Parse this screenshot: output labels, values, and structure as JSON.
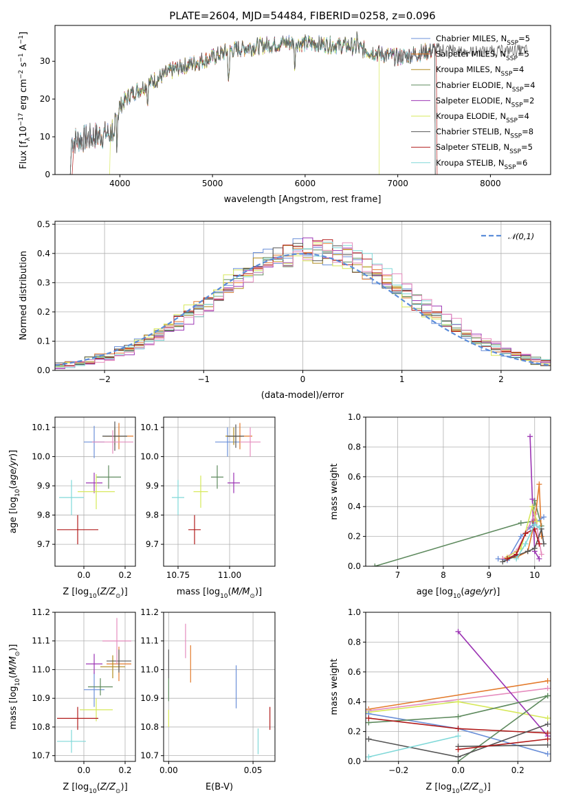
{
  "colors": {
    "Chabrier MILES": "#6a8fd8",
    "Salpeter MILES": "#e37a2b",
    "Kroupa MILES": "#b08a1c",
    "Chabrier ELODIE": "#5e8a5e",
    "Salpeter ELODIE": "#9b33b3",
    "Kroupa ELODIE": "#d6e858",
    "Chabrier STELIB": "#555555",
    "Salpeter STELIB": "#b11a1a",
    "Kroupa STELIB": "#7fd8d8",
    "pink": "#e58bbd",
    "normal": "#5b8dd9"
  },
  "chart_data": [
    {
      "id": "spectrum",
      "type": "line",
      "title": "PLATE=2604, MJD=54484, FIBERID=0258, z=0.096",
      "xlabel": "wavelength [Angstrom, rest frame]",
      "ylabel": "Flux [f",
      "ylabel_parts": [
        "Flux [f",
        "λ",
        "10",
        "−17",
        " erg cm",
        "−2",
        " s",
        "−1",
        " A",
        "−1",
        "]"
      ],
      "xlim": [
        3300,
        8650
      ],
      "ylim": [
        0,
        39.5
      ],
      "xticks": [
        4000,
        5000,
        6000,
        7000,
        8000
      ],
      "yticks": [
        0,
        10,
        20,
        30
      ],
      "grid": false,
      "legend_position": "top-right",
      "series": [
        {
          "name": "Chabrier MILES",
          "nssp": "5"
        },
        {
          "name": "Salpeter MILES",
          "nssp": "5"
        },
        {
          "name": "Kroupa MILES",
          "nssp": "4"
        },
        {
          "name": "Chabrier ELODIE",
          "nssp": "4"
        },
        {
          "name": "Salpeter ELODIE",
          "nssp": "2"
        },
        {
          "name": "Kroupa ELODIE",
          "nssp": "4"
        },
        {
          "name": "Chabrier STELIB",
          "nssp": "8"
        },
        {
          "name": "Salpeter STELIB",
          "nssp": "5"
        },
        {
          "name": "Kroupa STELIB",
          "nssp": "6"
        }
      ],
      "continuum_x": [
        3500,
        3700,
        3900,
        4000,
        4100,
        4300,
        4600,
        5000,
        5200,
        5500,
        5800,
        6200,
        6500,
        6800,
        7000,
        7200,
        7400
      ],
      "continuum_y": [
        9,
        10,
        11,
        18,
        21,
        24,
        28,
        31,
        33,
        34,
        35,
        34.5,
        34,
        32,
        31,
        32,
        33
      ]
    },
    {
      "id": "residuals",
      "type": "bar",
      "xlabel": "(data-model)/error",
      "ylabel": "Normed distribution",
      "xlim": [
        -2.5,
        2.5
      ],
      "ylim": [
        0,
        0.51
      ],
      "xticks": [
        -2,
        -1,
        0,
        1,
        2
      ],
      "yticks": [
        0.0,
        0.1,
        0.2,
        0.3,
        0.4,
        0.5
      ],
      "grid": true,
      "legend": [
        {
          "name": "𝒩(0,1)",
          "style": "dashed"
        }
      ],
      "legend_position": "top-right",
      "bin_width": 0.1,
      "bin_start": -2.5,
      "reference": "normal(0,1)"
    },
    {
      "id": "age_vs_Z",
      "type": "scatter",
      "xlabel": "Z [log",
      "ylabel": "age  [log",
      "xlim": [
        -0.14,
        0.25
      ],
      "ylim": [
        9.625,
        10.135
      ],
      "xticks": [
        0.0,
        0.2
      ],
      "yticks": [
        9.7,
        9.8,
        9.9,
        10.0,
        10.1
      ],
      "grid": true,
      "points": [
        {
          "x": 0.05,
          "y": 10.05,
          "xerr": 0.05,
          "yerr": 0.055,
          "series": "Chabrier MILES"
        },
        {
          "x": 0.17,
          "y": 10.07,
          "xerr": 0.07,
          "yerr": 0.045,
          "series": "Salpeter MILES"
        },
        {
          "x": 0.15,
          "y": 10.07,
          "xerr": 0.06,
          "yerr": 0.03,
          "series": "Kroupa MILES"
        },
        {
          "x": 0.12,
          "y": 9.93,
          "xerr": 0.06,
          "yerr": 0.04,
          "series": "Chabrier ELODIE"
        },
        {
          "x": 0.05,
          "y": 9.91,
          "xerr": 0.04,
          "yerr": 0.035,
          "series": "Salpeter ELODIE"
        },
        {
          "x": 0.06,
          "y": 9.88,
          "xerr": 0.09,
          "yerr": 0.06,
          "series": "Kroupa ELODIE"
        },
        {
          "x": 0.15,
          "y": 10.07,
          "xerr": 0.06,
          "yerr": 0.05,
          "series": "Chabrier STELIB"
        },
        {
          "x": -0.03,
          "y": 9.75,
          "xerr": 0.1,
          "yerr": 0.05,
          "series": "Salpeter STELIB"
        },
        {
          "x": -0.06,
          "y": 9.86,
          "xerr": 0.06,
          "yerr": 0.06,
          "series": "Kroupa STELIB"
        },
        {
          "x": 0.14,
          "y": 10.05,
          "xerr": 0.1,
          "yerr": 0.04,
          "series": "pink"
        }
      ]
    },
    {
      "id": "age_vs_mass",
      "type": "scatter",
      "xlabel": "mass [log",
      "xlim": [
        10.68,
        11.22
      ],
      "ylim": [
        9.625,
        10.135
      ],
      "xticks": [
        10.75,
        11.0
      ],
      "yticks": [
        9.7,
        9.8,
        9.9,
        10.0,
        10.1
      ],
      "grid": true,
      "points": [
        {
          "x": 10.99,
          "y": 10.05,
          "xerr": 0.06,
          "yerr": 0.05,
          "series": "Chabrier MILES"
        },
        {
          "x": 11.05,
          "y": 10.07,
          "xerr": 0.06,
          "yerr": 0.045,
          "series": "Salpeter MILES"
        },
        {
          "x": 11.02,
          "y": 10.07,
          "xerr": 0.04,
          "yerr": 0.03,
          "series": "Kroupa MILES"
        },
        {
          "x": 10.94,
          "y": 9.93,
          "xerr": 0.03,
          "yerr": 0.04,
          "series": "Chabrier ELODIE"
        },
        {
          "x": 11.02,
          "y": 9.91,
          "xerr": 0.03,
          "yerr": 0.035,
          "series": "Salpeter ELODIE"
        },
        {
          "x": 10.86,
          "y": 9.88,
          "xerr": 0.035,
          "yerr": 0.055,
          "series": "Kroupa ELODIE"
        },
        {
          "x": 11.03,
          "y": 10.07,
          "xerr": 0.04,
          "yerr": 0.04,
          "series": "Chabrier STELIB"
        },
        {
          "x": 10.83,
          "y": 9.75,
          "xerr": 0.03,
          "yerr": 0.05,
          "series": "Salpeter STELIB"
        },
        {
          "x": 10.75,
          "y": 9.86,
          "xerr": 0.03,
          "yerr": 0.06,
          "series": "Kroupa STELIB"
        },
        {
          "x": 11.1,
          "y": 10.05,
          "xerr": 0.05,
          "yerr": 0.05,
          "series": "pink"
        }
      ]
    },
    {
      "id": "weight_vs_age",
      "type": "line",
      "xlabel": "age  [log",
      "ylabel": "mass weight",
      "xlim": [
        6.3,
        10.35
      ],
      "ylim": [
        0,
        1.0
      ],
      "xticks": [
        7,
        8,
        9,
        10
      ],
      "yticks": [
        0.0,
        0.2,
        0.4,
        0.6,
        0.8,
        1.0
      ],
      "grid": true,
      "series": [
        {
          "series": "Chabrier ELODIE",
          "x": [
            6.5,
            9.7,
            9.95,
            10.0,
            10.15
          ],
          "y": [
            0.0,
            0.29,
            0.3,
            0.44,
            0.27
          ]
        },
        {
          "series": "Salpeter ELODIE",
          "x": [
            9.9,
            9.95,
            10.0,
            10.1
          ],
          "y": [
            0.87,
            0.45,
            0.1,
            0.05
          ]
        },
        {
          "series": "Salpeter MILES",
          "x": [
            9.3,
            9.6,
            9.85,
            10.0,
            10.1,
            10.15
          ],
          "y": [
            0.05,
            0.06,
            0.1,
            0.3,
            0.55,
            0.2
          ]
        },
        {
          "series": "Chabrier MILES",
          "x": [
            9.2,
            9.4,
            9.7,
            9.9,
            10.05,
            10.2
          ],
          "y": [
            0.05,
            0.04,
            0.2,
            0.26,
            0.3,
            0.33
          ]
        },
        {
          "series": "pink",
          "x": [
            9.3,
            9.6,
            9.8,
            10.0,
            10.15
          ],
          "y": [
            0.05,
            0.1,
            0.22,
            0.35,
            0.08
          ]
        },
        {
          "series": "Kroupa ELODIE",
          "x": [
            9.4,
            9.7,
            9.95,
            10.05
          ],
          "y": [
            0.06,
            0.12,
            0.4,
            0.3
          ]
        },
        {
          "series": "Chabrier STELIB",
          "x": [
            9.3,
            9.6,
            9.85,
            10.0,
            10.15,
            10.2
          ],
          "y": [
            0.03,
            0.07,
            0.1,
            0.12,
            0.25,
            0.15
          ]
        },
        {
          "series": "Salpeter STELIB",
          "x": [
            9.4,
            9.6,
            9.8,
            10.0,
            10.1
          ],
          "y": [
            0.05,
            0.08,
            0.22,
            0.25,
            0.15
          ]
        },
        {
          "series": "Kroupa STELIB",
          "x": [
            9.6,
            9.8,
            10.0,
            10.1
          ],
          "y": [
            0.05,
            0.15,
            0.28,
            0.26
          ]
        }
      ]
    },
    {
      "id": "mass_vs_Z",
      "type": "scatter",
      "xlabel": "Z [log",
      "ylabel": "mass [log",
      "xlim": [
        -0.14,
        0.25
      ],
      "ylim": [
        10.68,
        11.2
      ],
      "xticks": [
        0.0,
        0.2
      ],
      "yticks": [
        10.7,
        10.8,
        10.9,
        11.0,
        11.1,
        11.2
      ],
      "grid": true,
      "points": [
        {
          "x": 0.05,
          "y": 10.93,
          "xerr": 0.05,
          "yerr": 0.06,
          "series": "Chabrier MILES"
        },
        {
          "x": 0.17,
          "y": 11.02,
          "xerr": 0.06,
          "yerr": 0.06,
          "series": "Salpeter MILES"
        },
        {
          "x": 0.14,
          "y": 11.01,
          "xerr": 0.06,
          "yerr": 0.04,
          "series": "Kroupa MILES"
        },
        {
          "x": 0.08,
          "y": 10.94,
          "xerr": 0.06,
          "yerr": 0.03,
          "series": "Chabrier ELODIE"
        },
        {
          "x": 0.05,
          "y": 11.02,
          "xerr": 0.04,
          "yerr": 0.035,
          "series": "Salpeter ELODIE"
        },
        {
          "x": 0.06,
          "y": 10.86,
          "xerr": 0.08,
          "yerr": 0.04,
          "series": "Kroupa ELODIE"
        },
        {
          "x": 0.17,
          "y": 11.03,
          "xerr": 0.06,
          "yerr": 0.04,
          "series": "Chabrier STELIB"
        },
        {
          "x": -0.03,
          "y": 10.83,
          "xerr": 0.1,
          "yerr": 0.04,
          "series": "Salpeter STELIB"
        },
        {
          "x": -0.06,
          "y": 10.75,
          "xerr": 0.07,
          "yerr": 0.04,
          "series": "Kroupa STELIB"
        },
        {
          "x": 0.16,
          "y": 11.1,
          "xerr": 0.07,
          "yerr": 0.08,
          "series": "pink"
        }
      ]
    },
    {
      "id": "mass_vs_ebv",
      "type": "scatter",
      "xlabel": "E(B-V)",
      "xlim": [
        -0.003,
        0.063
      ],
      "ylim": [
        10.68,
        11.2
      ],
      "xticks": [
        0.0,
        0.05
      ],
      "yticks": [
        10.7,
        10.8,
        10.9,
        11.0,
        11.1,
        11.2
      ],
      "grid": true,
      "points": [
        {
          "x": 0.0,
          "y": 10.83,
          "yerr": 0.03,
          "series": "Kroupa ELODIE"
        },
        {
          "x": 0.0,
          "y": 11.02,
          "yerr": 0.05,
          "series": "Chabrier STELIB"
        },
        {
          "x": 0.0,
          "y": 10.93,
          "yerr": 0.04,
          "series": "Chabrier ELODIE"
        },
        {
          "x": 0.01,
          "y": 11.1,
          "yerr": 0.06,
          "series": "pink"
        },
        {
          "x": 0.013,
          "y": 11.02,
          "yerr": 0.065,
          "series": "Salpeter MILES"
        },
        {
          "x": 0.04,
          "y": 10.94,
          "yerr": 0.075,
          "series": "Chabrier MILES"
        },
        {
          "x": 0.053,
          "y": 10.75,
          "yerr": 0.045,
          "series": "Kroupa STELIB"
        },
        {
          "x": 0.06,
          "y": 10.83,
          "yerr": 0.04,
          "series": "Salpeter STELIB"
        }
      ]
    },
    {
      "id": "weight_vs_Z",
      "type": "line",
      "xlabel": "Z [log",
      "ylabel": "mass weight",
      "xlim": [
        -0.31,
        0.31
      ],
      "ylim": [
        0,
        1.0
      ],
      "xticks": [
        -0.2,
        0.0,
        0.2
      ],
      "yticks": [
        0.0,
        0.2,
        0.4,
        0.6,
        0.8,
        1.0
      ],
      "grid": true,
      "series": [
        {
          "series": "Salpeter MILES",
          "x": [
            -0.3,
            0.3
          ],
          "y": [
            0.35,
            0.54
          ]
        },
        {
          "series": "pink",
          "x": [
            -0.3,
            0.3
          ],
          "y": [
            0.34,
            0.49
          ]
        },
        {
          "series": "Kroupa ELODIE",
          "x": [
            -0.3,
            0.0,
            0.3
          ],
          "y": [
            0.33,
            0.4,
            0.29
          ]
        },
        {
          "series": "Chabrier MILES",
          "x": [
            -0.3,
            0.0,
            0.3
          ],
          "y": [
            0.32,
            0.22,
            0.05
          ]
        },
        {
          "series": "Salpeter ELODIE",
          "x": [
            0.0,
            0.3
          ],
          "y": [
            0.87,
            0.17
          ]
        },
        {
          "series": "Chabrier ELODIE",
          "x": [
            -0.3,
            0.0,
            0.3
          ],
          "y": [
            0.26,
            0.3,
            0.44
          ]
        },
        {
          "series": "Chabrier ELODIE",
          "x": [
            0.0,
            0.3
          ],
          "y": [
            0.0,
            0.44
          ]
        },
        {
          "series": "Salpeter STELIB",
          "x": [
            -0.3,
            0.0,
            0.3
          ],
          "y": [
            0.29,
            0.22,
            0.19
          ]
        },
        {
          "series": "Chabrier STELIB",
          "x": [
            -0.3,
            0.0,
            0.3
          ],
          "y": [
            0.15,
            0.03,
            0.25
          ]
        },
        {
          "series": "Chabrier STELIB",
          "x": [
            0.0,
            0.3
          ],
          "y": [
            0.1,
            0.11
          ]
        },
        {
          "series": "Salpeter STELIB",
          "x": [
            0.0,
            0.3
          ],
          "y": [
            0.08,
            0.15
          ]
        },
        {
          "series": "Kroupa STELIB",
          "x": [
            -0.3,
            0.0
          ],
          "y": [
            0.03,
            0.17
          ]
        }
      ]
    }
  ]
}
